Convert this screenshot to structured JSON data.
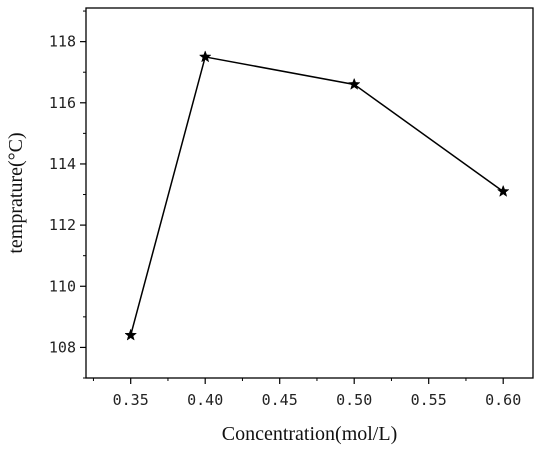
{
  "chart_data": {
    "type": "line",
    "title": "",
    "xlabel": "Concentration(mol/L)",
    "ylabel": "temprature(°C)",
    "x": [
      0.35,
      0.4,
      0.5,
      0.6
    ],
    "series": [
      {
        "name": "",
        "values": [
          108.4,
          117.5,
          116.6,
          113.1
        ]
      }
    ],
    "xticks": [
      "0.35",
      "0.40",
      "0.45",
      "0.50",
      "0.55",
      "0.60"
    ],
    "xtick_values": [
      0.35,
      0.4,
      0.45,
      0.5,
      0.55,
      0.6
    ],
    "yticks": [
      "108",
      "110",
      "112",
      "114",
      "116",
      "118"
    ],
    "ytick_values": [
      108,
      110,
      112,
      114,
      116,
      118
    ],
    "xlim": [
      0.32,
      0.62
    ],
    "ylim": [
      107.0,
      119.1
    ],
    "grid": false,
    "legend": "none",
    "marker": "star",
    "line_color": "#000000"
  }
}
